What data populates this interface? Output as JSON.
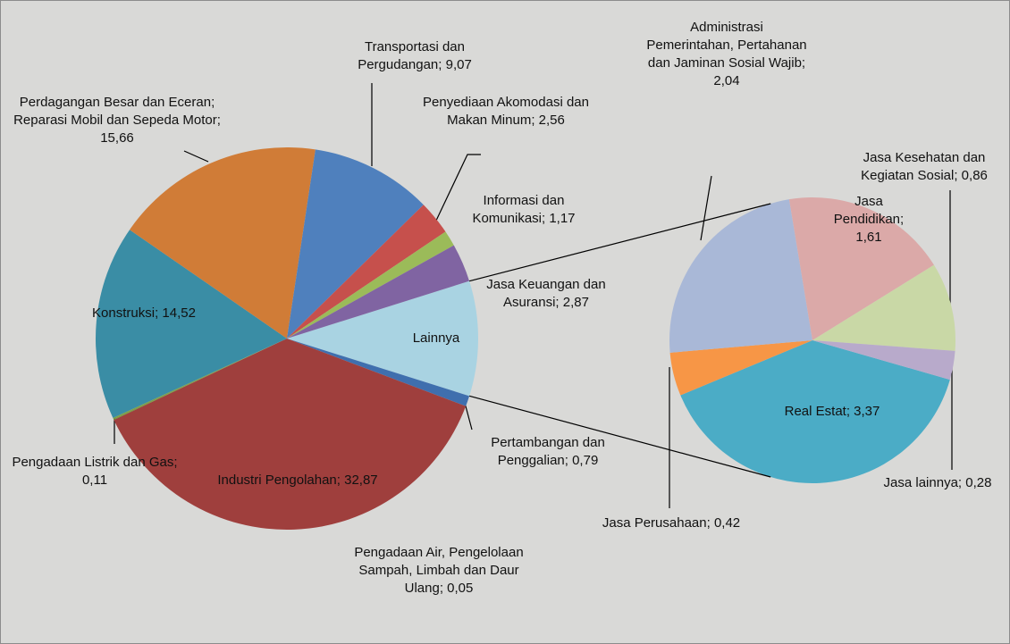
{
  "chart_data": {
    "type": "pie-of-pie",
    "main": [
      {
        "label": "Lainnya",
        "color": "#a9d3e2",
        "other": true
      },
      {
        "label": "Pertambangan dan Penggalian; 0,79",
        "value": 0.79,
        "color": "#3f6fae"
      },
      {
        "label": "Industri Pengolahan; 32,87",
        "value": 32.87,
        "color": "#9f3f3d"
      },
      {
        "label": "Pengadaan Air, Pengelolaan Sampah, Limbah dan Daur Ulang; 0,05",
        "value": 0.05,
        "color": "#6d8b3a"
      },
      {
        "label": "Pengadaan Listrik dan Gas; 0,11",
        "value": 0.11,
        "color": "#7f9f45"
      },
      {
        "label": "Konstruksi; 14,52",
        "value": 14.52,
        "color": "#3a8da5"
      },
      {
        "label": "Perdagangan Besar dan Eceran; Reparasi Mobil dan Sepeda Motor; 15,66",
        "value": 15.66,
        "color": "#d07c37"
      },
      {
        "label": "Transportasi dan Pergudangan; 9,07",
        "value": 9.07,
        "color": "#4f80bd"
      },
      {
        "label": "Penyediaan Akomodasi dan Makan Minum; 2,56",
        "value": 2.56,
        "color": "#c6504c"
      },
      {
        "label": "Informasi dan Komunikasi; 1,17",
        "value": 1.17,
        "color": "#9bbb59"
      },
      {
        "label": "Jasa Keuangan dan Asuransi; 2,87",
        "value": 2.87,
        "color": "#8064a2"
      }
    ],
    "secondary": [
      {
        "label": "Real Estat; 3,37",
        "value": 3.37,
        "color": "#4bacc6"
      },
      {
        "label": "Jasa Perusahaan; 0,42",
        "value": 0.42,
        "color": "#f79646"
      },
      {
        "label": "Administrasi Pemerintahan, Pertahanan dan Jaminan Sosial Wajib; 2,04",
        "value": 2.04,
        "color": "#a9b8d7"
      },
      {
        "label": "Jasa Pendidikan; 1,61",
        "value": 1.61,
        "color": "#dba9a8"
      },
      {
        "label": "Jasa Kesehatan dan Kegiatan Sosial; 0,86",
        "value": 0.86,
        "color": "#c9d8a6"
      },
      {
        "label": "Jasa lainnya; 0,28",
        "value": 0.28,
        "color": "#b8aacb"
      }
    ]
  }
}
